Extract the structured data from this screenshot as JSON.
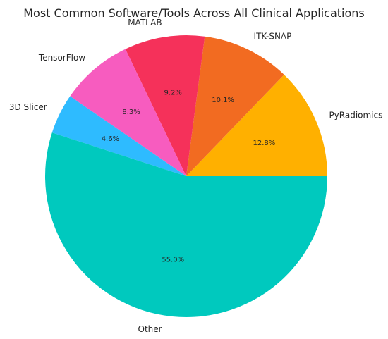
{
  "chart_data": {
    "type": "pie",
    "title": "Most Common Software/Tools Across All Clinical Applications",
    "start_angle_deg": 0,
    "direction": "counterclockwise",
    "slices": [
      {
        "label": "PyRadiomics",
        "value": 12.8,
        "pct_label": "12.8%",
        "color": "#FFB000"
      },
      {
        "label": "ITK-SNAP",
        "value": 10.1,
        "pct_label": "10.1%",
        "color": "#F26B21"
      },
      {
        "label": "MATLAB",
        "value": 9.2,
        "pct_label": "9.2%",
        "color": "#F5315A"
      },
      {
        "label": "TensorFlow",
        "value": 8.3,
        "pct_label": "8.3%",
        "color": "#F75CBF"
      },
      {
        "label": "3D Slicer",
        "value": 4.6,
        "pct_label": "4.6%",
        "color": "#2EBBFF"
      },
      {
        "label": "Other",
        "value": 55.0,
        "pct_label": "55.0%",
        "color": "#00C9BE"
      }
    ]
  }
}
